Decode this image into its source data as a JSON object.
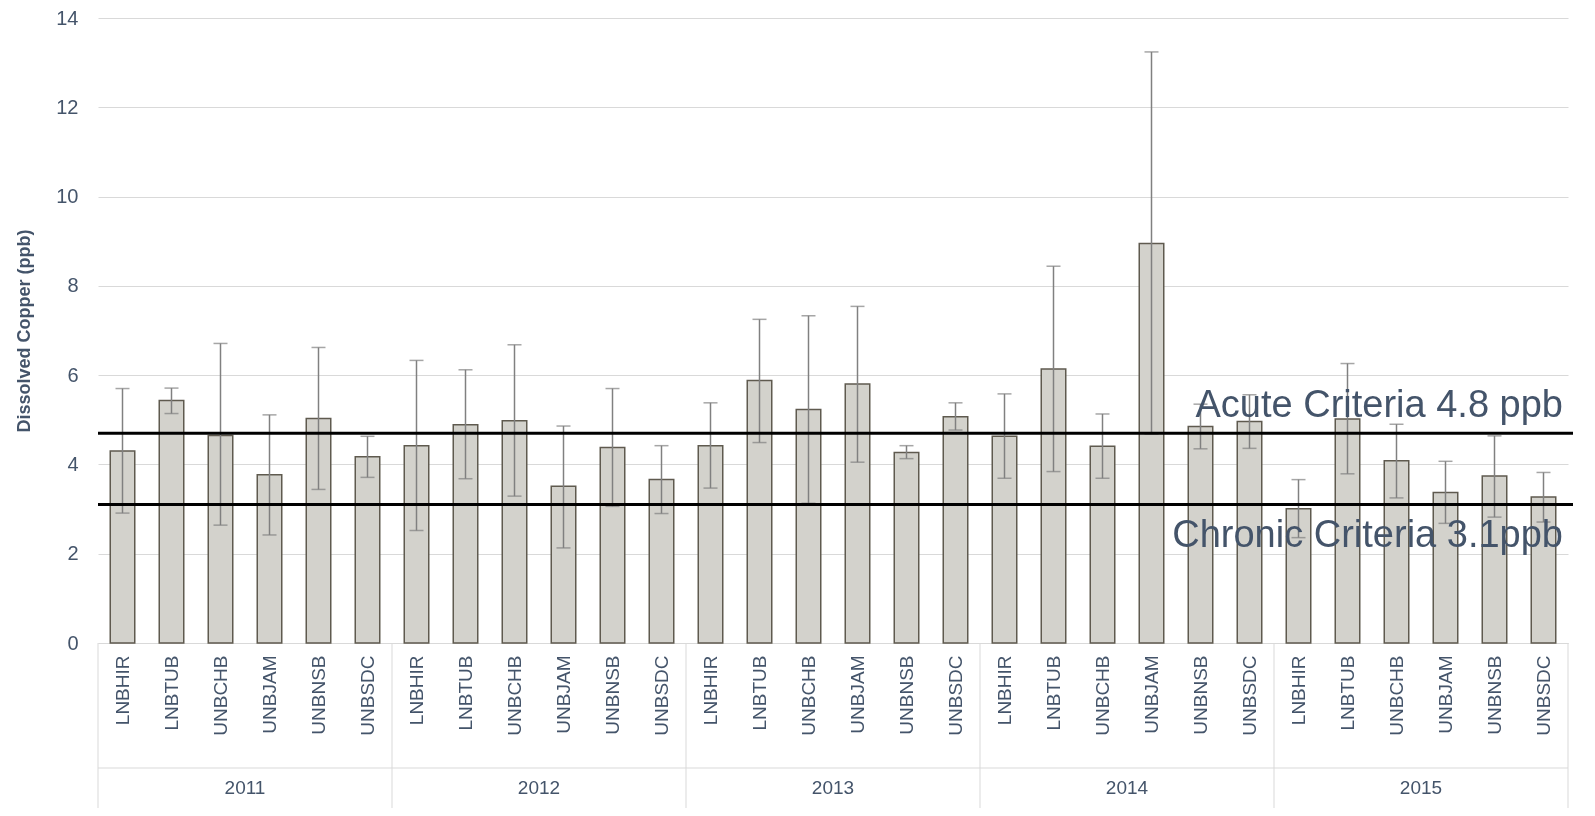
{
  "chart_data": {
    "type": "bar",
    "ylabel": "Dissolved Copper (ppb)",
    "categories": [
      "LNBHIR",
      "LNBTUB",
      "UNBCHB",
      "UNBJAM",
      "UNBNSB",
      "UNBSDC",
      "LNBHIR",
      "LNBTUB",
      "UNBCHB",
      "UNBJAM",
      "UNBNSB",
      "UNBSDC",
      "LNBHIR",
      "LNBTUB",
      "UNBCHB",
      "UNBJAM",
      "UNBNSB",
      "UNBSDC",
      "LNBHIR",
      "LNBTUB",
      "UNBCHB",
      "UNBJAM",
      "UNBNSB",
      "UNBSDC",
      "LNBHIR",
      "LNBTUB",
      "UNBCHB",
      "UNBJAM",
      "UNBNSB",
      "UNBSDC"
    ],
    "values": [
      4.3,
      5.43,
      4.65,
      3.77,
      5.03,
      4.17,
      4.42,
      4.89,
      4.98,
      3.51,
      4.38,
      3.66,
      4.42,
      5.88,
      5.23,
      5.8,
      4.27,
      5.07,
      4.63,
      6.14,
      4.41,
      8.95,
      4.85,
      4.96,
      3.01,
      5.02,
      4.08,
      3.37,
      3.74,
      3.27
    ],
    "errors": [
      [
        2.91,
        5.7
      ],
      [
        5.14,
        5.71
      ],
      [
        2.64,
        6.71
      ],
      [
        2.42,
        5.11
      ],
      [
        3.44,
        6.62
      ],
      [
        3.71,
        4.63
      ],
      [
        2.52,
        6.33
      ],
      [
        3.68,
        6.12
      ],
      [
        3.29,
        6.68
      ],
      [
        2.13,
        4.86
      ],
      [
        3.06,
        5.7
      ],
      [
        2.9,
        4.42
      ],
      [
        3.47,
        5.38
      ],
      [
        4.49,
        7.25
      ],
      [
        3.13,
        7.33
      ],
      [
        4.05,
        7.54
      ],
      [
        4.13,
        4.42
      ],
      [
        4.77,
        5.38
      ],
      [
        3.69,
        5.58
      ],
      [
        3.84,
        8.44
      ],
      [
        3.69,
        5.13
      ],
      [
        4.68,
        13.24
      ],
      [
        4.35,
        5.35
      ],
      [
        4.36,
        5.56
      ],
      [
        2.36,
        3.66
      ],
      [
        3.79,
        6.26
      ],
      [
        3.25,
        4.9
      ],
      [
        2.68,
        4.07
      ],
      [
        2.82,
        4.64
      ],
      [
        2.71,
        3.82
      ]
    ],
    "color": "#d3d2cc",
    "ylim": [
      0,
      14
    ],
    "yticks": [
      0,
      2,
      4,
      6,
      8,
      10,
      12,
      14
    ],
    "grid": "y",
    "ref_lines": [
      {
        "axis": "y",
        "value": 4.7,
        "label": "Acute Criteria 4.8 ppb",
        "color": "#000000"
      },
      {
        "axis": "y",
        "value": 3.1,
        "label": "Chronic Criteria 3.1ppb",
        "color": "#000000"
      }
    ],
    "annotations": [
      "2011",
      "2012",
      "2013",
      "2014",
      "2015"
    ]
  }
}
